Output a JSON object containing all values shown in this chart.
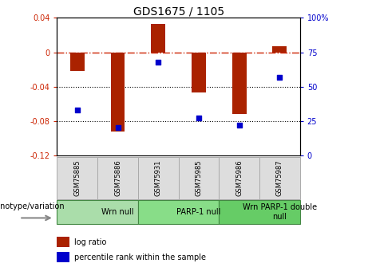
{
  "title": "GDS1675 / 1105",
  "samples": [
    "GSM75885",
    "GSM75886",
    "GSM75931",
    "GSM75985",
    "GSM75986",
    "GSM75987"
  ],
  "log_ratio": [
    -0.022,
    -0.092,
    0.033,
    -0.047,
    -0.072,
    0.007
  ],
  "percentile_rank": [
    33,
    20,
    68,
    27,
    22,
    57
  ],
  "groups": [
    {
      "label": "Wrn null",
      "start": 0,
      "end": 2,
      "color": "#aaddaa"
    },
    {
      "label": "PARP-1 null",
      "start": 2,
      "end": 4,
      "color": "#88dd88"
    },
    {
      "label": "Wrn PARP-1 double\nnull",
      "start": 4,
      "end": 6,
      "color": "#66cc66"
    }
  ],
  "ylim_left": [
    -0.12,
    0.04
  ],
  "ylim_right": [
    0,
    100
  ],
  "yticks_left": [
    0.04,
    0,
    -0.04,
    -0.08,
    -0.12
  ],
  "yticks_right": [
    100,
    75,
    50,
    25,
    0
  ],
  "bar_color": "#aa2200",
  "dot_color": "#0000cc",
  "zero_line_color": "#cc2200",
  "grid_color": "#000000",
  "background_color": "#ffffff",
  "plot_bg_color": "#ffffff",
  "legend_bar_label": "log ratio",
  "legend_dot_label": "percentile rank within the sample",
  "xlabel_group": "genotype/variation",
  "bar_width": 0.35,
  "title_fontsize": 10,
  "tick_fontsize": 7,
  "sample_fontsize": 6,
  "group_fontsize": 7,
  "legend_fontsize": 7
}
